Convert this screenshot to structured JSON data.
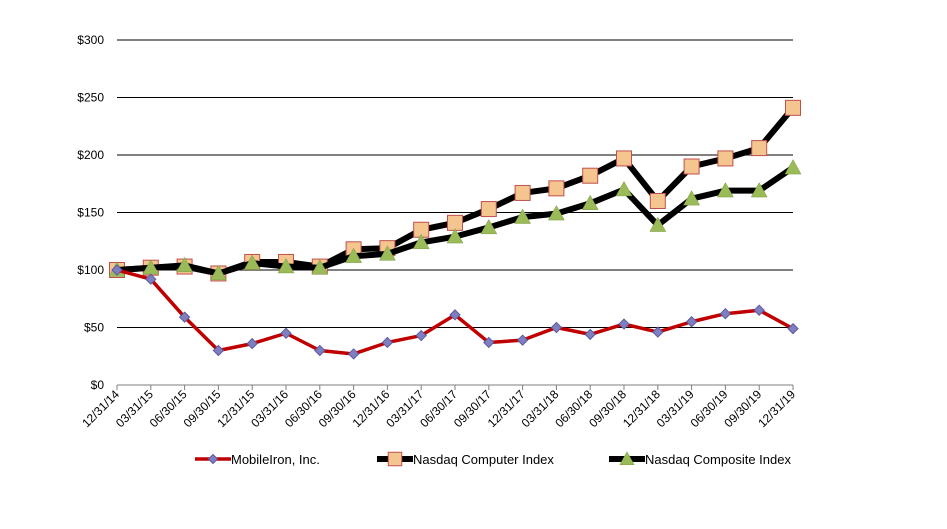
{
  "chart_data": {
    "type": "line",
    "categories": [
      "12/31/14",
      "03/31/15",
      "06/30/15",
      "09/30/15",
      "12/31/15",
      "03/31/16",
      "06/30/16",
      "09/30/16",
      "12/31/16",
      "03/31/17",
      "06/30/17",
      "09/30/17",
      "12/31/17",
      "03/31/18",
      "06/30/18",
      "09/30/18",
      "12/31/18",
      "03/31/19",
      "06/30/19",
      "09/30/19",
      "12/31/19"
    ],
    "series": [
      {
        "name": "MobileIron, Inc.",
        "marker": "diamond",
        "line_color": "#c00000",
        "marker_color": "#7f7fbf",
        "values": [
          100,
          92,
          59,
          30,
          36,
          45,
          30,
          27,
          37,
          43,
          61,
          37,
          39,
          50,
          44,
          53,
          46,
          55,
          62,
          65,
          49
        ]
      },
      {
        "name": "Nasdaq Computer Index",
        "marker": "square",
        "line_color": "#000000",
        "marker_color": "#f4c58f",
        "values": [
          100,
          102,
          103,
          97,
          107,
          107,
          103,
          118,
          119,
          135,
          141,
          153,
          167,
          171,
          182,
          197,
          160,
          190,
          197,
          206,
          241
        ]
      },
      {
        "name": "Nasdaq Composite Index",
        "marker": "triangle",
        "line_color": "#000000",
        "marker_color": "#9bbb59",
        "values": [
          100,
          102,
          104,
          97,
          106,
          103,
          102,
          112,
          114,
          124,
          129,
          137,
          146,
          149,
          158,
          170,
          139,
          162,
          169,
          169,
          189
        ]
      }
    ],
    "y_ticks": [
      "$0",
      "$50",
      "$100",
      "$150",
      "$200",
      "$250",
      "$300"
    ],
    "ylim": [
      0,
      300
    ],
    "grid": "horizontal",
    "legend": "bottom"
  }
}
